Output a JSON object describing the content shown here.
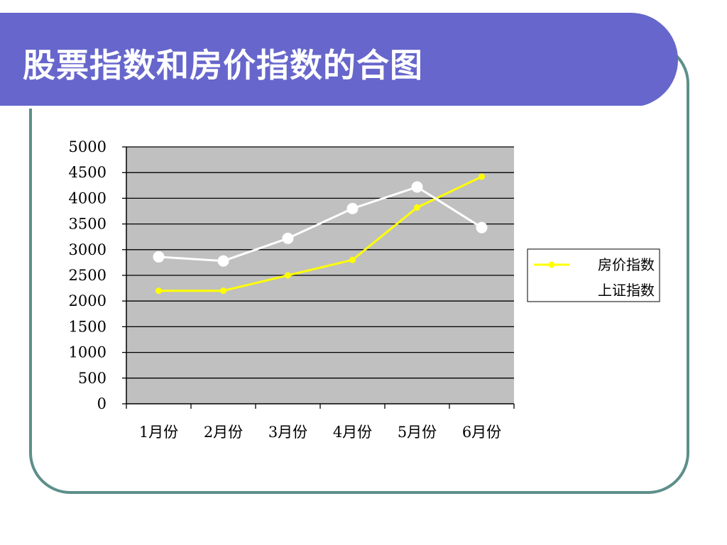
{
  "slide": {
    "title": "股票指数和房价指数的合图",
    "colors": {
      "title_bg": "#6666cc",
      "frame_border": "#5d8f8b",
      "plot_bg": "#c0c0c0"
    }
  },
  "chart_data": {
    "type": "line",
    "title": "",
    "xlabel": "",
    "ylabel": "",
    "categories": [
      "1月份",
      "2月份",
      "3月份",
      "4月份",
      "5月份",
      "6月份"
    ],
    "ylim": [
      0,
      5000
    ],
    "yticks": [
      0,
      500,
      1000,
      1500,
      2000,
      2500,
      3000,
      3500,
      4000,
      4500,
      5000
    ],
    "grid": true,
    "legend_position": "right",
    "series": [
      {
        "name": "房价指数",
        "values": [
          2200,
          2200,
          2500,
          2800,
          3820,
          4420
        ],
        "color": "#ffff00",
        "marker": "small-dot"
      },
      {
        "name": "上证指数",
        "values": [
          2860,
          2780,
          3220,
          3800,
          4220,
          3430
        ],
        "color": "#ffffff",
        "marker": "large-dot"
      }
    ]
  }
}
